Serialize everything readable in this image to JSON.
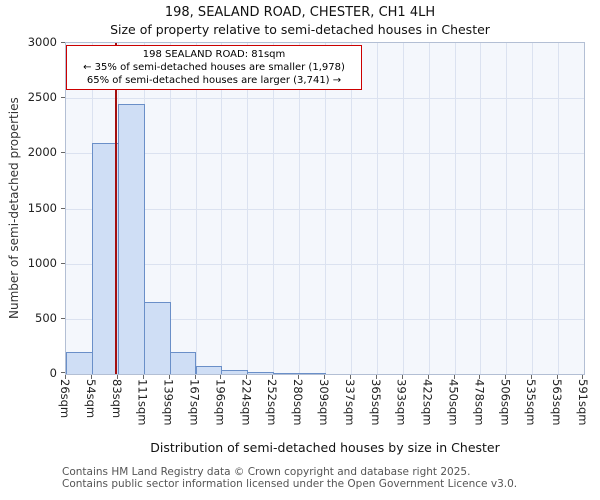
{
  "chart_data": {
    "type": "bar",
    "title": "198, SEALAND ROAD, CHESTER, CH1 4LH",
    "subtitle": "Size of property relative to semi-detached houses in Chester",
    "xlabel": "Distribution of semi-detached houses by size in Chester",
    "ylabel": "Number of semi-detached properties",
    "ylim": [
      0,
      3000
    ],
    "yticks": [
      0,
      500,
      1000,
      1500,
      2000,
      2500,
      3000
    ],
    "x_min": 26,
    "x_max": 591,
    "grid": true,
    "categories": [
      "26sqm",
      "54sqm",
      "83sqm",
      "111sqm",
      "139sqm",
      "167sqm",
      "196sqm",
      "224sqm",
      "252sqm",
      "280sqm",
      "309sqm",
      "337sqm",
      "365sqm",
      "393sqm",
      "422sqm",
      "450sqm",
      "478sqm",
      "506sqm",
      "535sqm",
      "563sqm",
      "591sqm"
    ],
    "values": [
      200,
      2090,
      2450,
      650,
      200,
      75,
      35,
      20,
      12,
      8,
      0,
      0,
      0,
      0,
      0,
      0,
      0,
      0,
      0,
      0
    ],
    "marker": {
      "value": 81,
      "label": "81sqm",
      "color": "#a40f0f"
    },
    "annotation": {
      "line1": "198 SEALAND ROAD: 81sqm",
      "line2": "← 35% of semi-detached houses are smaller (1,978)",
      "line3": "65% of semi-detached houses are larger (3,741) →"
    },
    "colors": {
      "bar_fill": "#cfdef5",
      "bar_border": "#6a8fc8",
      "plot_bg": "#f4f7fc",
      "grid": "#dbe2f0",
      "marker": "#a40f0f",
      "annotation_border": "#cc0000"
    }
  },
  "footer": {
    "line1": "Contains HM Land Registry data © Crown copyright and database right 2025.",
    "line2": "Contains public sector information licensed under the Open Government Licence v3.0."
  }
}
